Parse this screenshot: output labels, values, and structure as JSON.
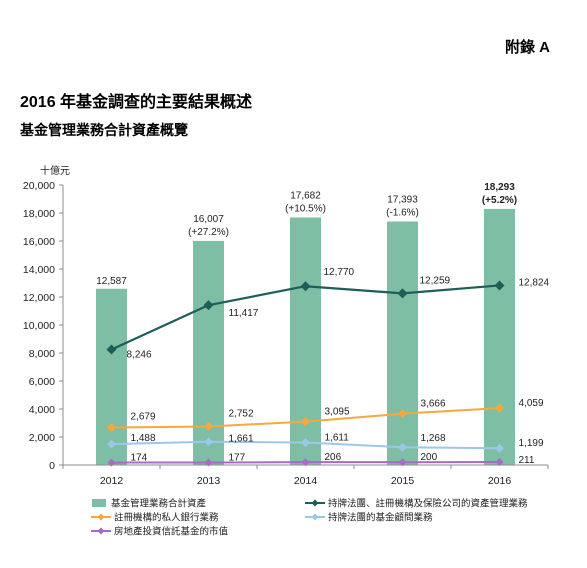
{
  "header": {
    "appendix": "附錄 A",
    "title": "2016 年基金調查的主要結果概述"
  },
  "chart_data": {
    "type": "bar",
    "title": "基金管理業務合計資產概覽",
    "ylabel": "十億元",
    "categories": [
      "2012",
      "2013",
      "2014",
      "2015",
      "2016"
    ],
    "ylim": [
      0,
      20000
    ],
    "yticks": [
      0,
      2000,
      4000,
      6000,
      8000,
      10000,
      12000,
      14000,
      16000,
      18000,
      20000
    ],
    "ytick_labels": [
      "0",
      "2,000",
      "4,000",
      "6,000",
      "8,000",
      "10,000",
      "12,000",
      "14,000",
      "16,000",
      "18,000",
      "20,000"
    ],
    "grid": false,
    "legend": "bottom",
    "series": [
      {
        "name": "基金管理業務合計資產",
        "type": "bar",
        "color": "#7ebea4",
        "values": [
          12587,
          16007,
          17682,
          17393,
          18293
        ],
        "labels": [
          "12,587",
          "16,007",
          "17,682",
          "17,393",
          "18,293"
        ],
        "growth_labels": [
          "",
          "(+27.2%)",
          "(+10.5%)",
          "(-1.6%)",
          "(+5.2%)"
        ]
      },
      {
        "name": "持牌法團、註冊機構及保險公司的資產管理業務",
        "type": "line",
        "color": "#1e5e56",
        "values": [
          8246,
          11417,
          12770,
          12259,
          12824
        ],
        "labels": [
          "8,246",
          "11,417",
          "12,770",
          "12,259",
          "12,824"
        ]
      },
      {
        "name": "註冊機構的私人銀行業務",
        "type": "line",
        "color": "#f6a83c",
        "values": [
          2679,
          2752,
          3095,
          3666,
          4059
        ],
        "labels": [
          "2,679",
          "2,752",
          "3,095",
          "3,666",
          "4,059"
        ]
      },
      {
        "name": "持牌法團的基金顧問業務",
        "type": "line",
        "color": "#9cc7ed",
        "values": [
          1488,
          1661,
          1611,
          1268,
          1199
        ],
        "labels": [
          "1,488",
          "1,661",
          "1,611",
          "1,268",
          "1,199"
        ]
      },
      {
        "name": "房地產投資信託基金的市值",
        "type": "line",
        "color": "#a66cc4",
        "values": [
          174,
          177,
          206,
          200,
          211
        ],
        "labels": [
          "174",
          "177",
          "206",
          "200",
          "211"
        ]
      }
    ]
  }
}
